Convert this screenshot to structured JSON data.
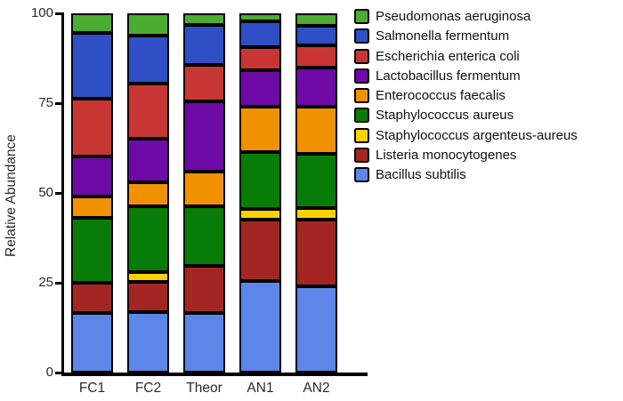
{
  "chart_data": {
    "type": "bar",
    "stacked": true,
    "title": "",
    "xlabel": "",
    "ylabel": "Relative Abundance",
    "ylim": [
      0,
      100
    ],
    "yticks": [
      0,
      25,
      50,
      75,
      100
    ],
    "grid": false,
    "legend_position": "right",
    "legend_order": "top-segment-first",
    "categories": [
      "FC1",
      "FC2",
      "Theor",
      "AN1",
      "AN2"
    ],
    "series": [
      {
        "name": "Bacillus subtilis",
        "color": "#5C86E8",
        "values": [
          16.5,
          16.9,
          16.5,
          25.6,
          24.0
        ]
      },
      {
        "name": "Listeria monocytogenes",
        "color": "#A32623",
        "values": [
          8.5,
          8.3,
          13.3,
          17.0,
          18.6
        ]
      },
      {
        "name": "Staphylococcus argenteus-aureus",
        "color": "#FBD100",
        "values": [
          0,
          2.9,
          0,
          2.9,
          3.3
        ]
      },
      {
        "name": "Staphylococcus aureus",
        "color": "#077D07",
        "values": [
          18.2,
          18.3,
          16.6,
          15.8,
          15.0
        ]
      },
      {
        "name": "Enterococcus faecalis",
        "color": "#F29100",
        "values": [
          5.8,
          6.6,
          9.5,
          12.8,
          13.2
        ]
      },
      {
        "name": "Lactobacillus fermentum",
        "color": "#6E0AA6",
        "values": [
          11.2,
          12.0,
          19.5,
          10.0,
          10.8
        ]
      },
      {
        "name": "Escherichia enterica coli",
        "color": "#C83634",
        "values": [
          16.0,
          15.5,
          10.3,
          6.6,
          6.2
        ]
      },
      {
        "name": "Salmonella fermentum",
        "color": "#2E4FC5",
        "values": [
          18.4,
          13.3,
          11.0,
          7.1,
          5.4
        ]
      },
      {
        "name": "Pseudomonas aeruginosa",
        "color": "#4CAD33",
        "values": [
          5.4,
          6.2,
          3.3,
          2.2,
          3.5
        ]
      }
    ],
    "axis_color": "#000000",
    "segment_border_color": "#000000"
  }
}
